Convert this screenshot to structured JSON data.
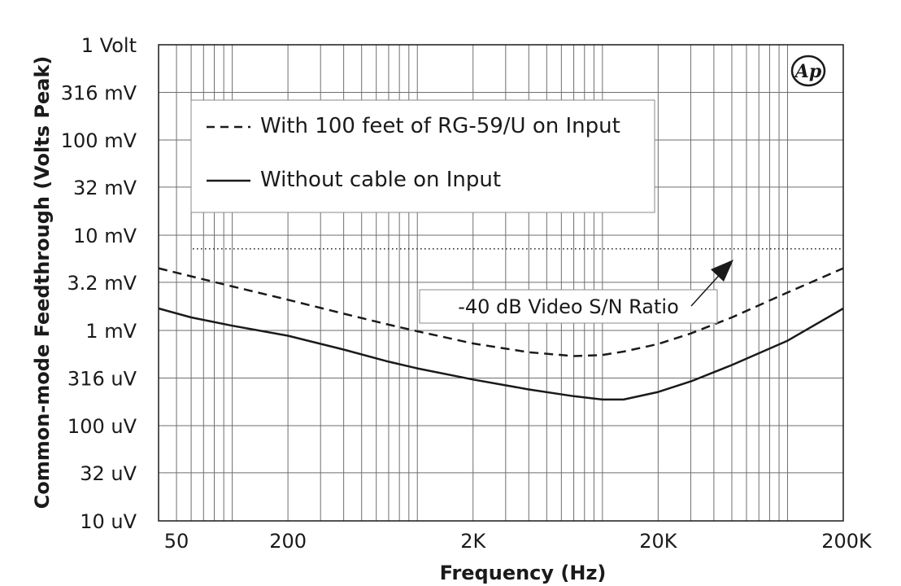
{
  "chart_data": {
    "type": "line",
    "xlabel": "Frequency (Hz)",
    "ylabel": "Common-mode Feedthrough (Volts Peak)",
    "x_scale": "log",
    "y_scale": "log",
    "xlim": [
      40,
      200000
    ],
    "ylim": [
      1e-05,
      1
    ],
    "grid": true,
    "legend_position": "top-left",
    "x_tick_values": [
      50,
      200,
      2000,
      20000,
      200000
    ],
    "x_tick_labels": [
      "50",
      "200",
      "2K",
      "20K",
      "200K"
    ],
    "y_tick_values": [
      1e-05,
      3.2e-05,
      0.0001,
      0.000316,
      0.001,
      0.0032,
      0.01,
      0.032,
      0.1,
      0.316,
      1
    ],
    "y_tick_labels": [
      "10 uV",
      "32 uV",
      "100 uV",
      "316 uV",
      "1 mV",
      "3.2 mV",
      "10 mV",
      "32 mV",
      "100 mV",
      "316 mV",
      "1 Volt"
    ],
    "series": [
      {
        "name": "With 100 feet of RG-59/U on Input",
        "style": "dashed",
        "color": "#1a1a1a",
        "x": [
          40,
          60,
          100,
          200,
          400,
          700,
          1000,
          2000,
          4000,
          7000,
          10000,
          13000,
          20000,
          30000,
          50000,
          100000,
          200000
        ],
        "y": [
          0.0045,
          0.0037,
          0.0029,
          0.0021,
          0.0015,
          0.00115,
          0.00098,
          0.00073,
          0.00059,
          0.000538,
          0.000552,
          0.0006,
          0.00072,
          0.00093,
          0.00137,
          0.0025,
          0.0045
        ]
      },
      {
        "name": "Without cable on Input",
        "style": "solid",
        "color": "#1a1a1a",
        "x": [
          40,
          60,
          100,
          200,
          400,
          700,
          1000,
          2000,
          4000,
          7000,
          10000,
          13000,
          20000,
          30000,
          50000,
          100000,
          200000
        ],
        "y": [
          0.0017,
          0.00137,
          0.00112,
          0.00088,
          0.00063,
          0.00047,
          0.0004,
          0.000305,
          0.00024,
          0.000204,
          0.000188,
          0.000188,
          0.000226,
          0.000292,
          0.000433,
          0.00078,
          0.0017
        ]
      }
    ],
    "reference_line": {
      "label": "-40 dB Video S/N Ratio",
      "y": 0.0072,
      "x_start": 50,
      "style": "dotted"
    }
  },
  "legend": {
    "dashed_label": "With 100 feet of RG-59/U on Input",
    "solid_label": "Without cable on Input"
  },
  "annotation": {
    "text": "-40 dB Video S/N Ratio"
  },
  "logo": {
    "text": "Ap"
  }
}
